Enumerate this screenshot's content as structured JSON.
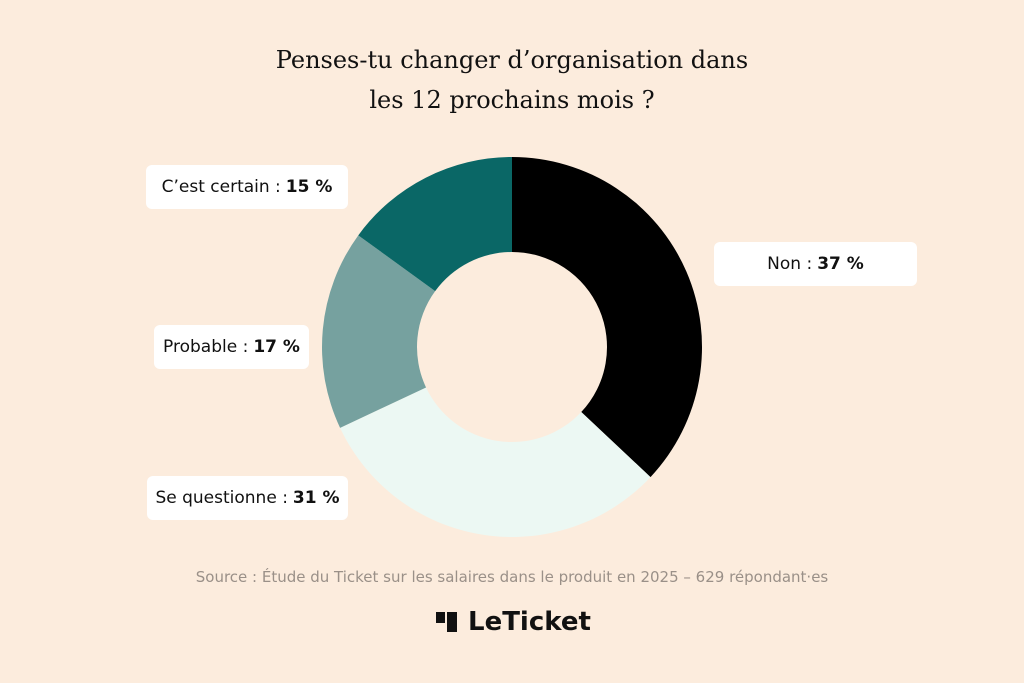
{
  "chart_data": {
    "type": "donut",
    "title": "Penses-tu changer d’organisation dans les 12 prochains mois ?",
    "categories": [
      "Non :",
      "Se questionne :",
      "Probable :",
      "C’est certain :"
    ],
    "values": [
      37,
      31,
      17,
      15
    ],
    "value_labels": [
      "37 %",
      "31 %",
      "17 %",
      "15 %"
    ],
    "colors": [
      "#000000",
      "#ecf8f3",
      "#76a19f",
      "#0a6766"
    ],
    "source": "Source : Étude du Ticket sur les salaires dans le produit en 2025 – 629 répondant·es",
    "logo": "LeTicket"
  }
}
